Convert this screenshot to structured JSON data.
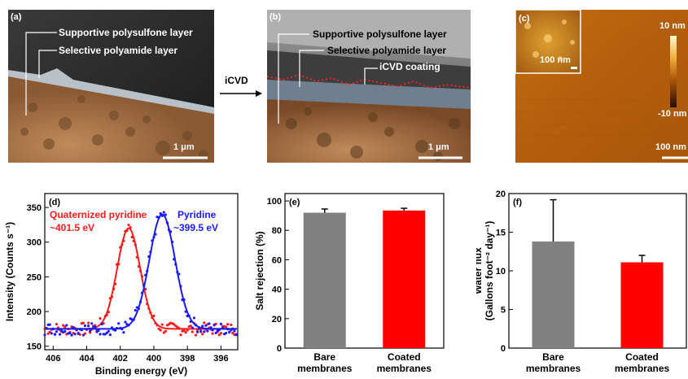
{
  "panels": {
    "a": {
      "label": "(a)",
      "layer1": "Supportive polysulfone layer",
      "layer2": "Selective polyamide layer",
      "scalebar": "1 μm"
    },
    "arrow_label": "iCVD",
    "b": {
      "label": "(b)",
      "layer1": "Supportive polysulfone layer",
      "layer2": "Selective polyamide layer",
      "layer3": "iCVD coating",
      "scalebar": "1 μm"
    },
    "c": {
      "label": "(c)",
      "inset_scalebar": "100 nm",
      "colorbar_max": "10 nm",
      "colorbar_min": "-10 nm",
      "scalebar": "100 nm"
    }
  },
  "chart_data": [
    {
      "id": "d",
      "label": "(d)",
      "type": "scatter",
      "xlabel": "Binding energy (eV)",
      "ylabel": "Intensity (Counts s⁻¹)",
      "xlim": [
        406.5,
        395
      ],
      "ylim": [
        145,
        370
      ],
      "xticks": [
        406,
        404,
        402,
        400,
        398,
        396
      ],
      "yticks": [
        150,
        200,
        250,
        300,
        350
      ],
      "annotations": [
        {
          "text": "Quaternized pyridine",
          "color": "#ff1a1a"
        },
        {
          "text": "~401.5 eV",
          "color": "#ff1a1a"
        },
        {
          "text": "Pyridine",
          "color": "#1a1aff"
        },
        {
          "text": "~399.5 eV",
          "color": "#1a1aff"
        }
      ],
      "series": [
        {
          "color": "#ff1a1a",
          "peak_center": 401.5,
          "peak_height": 320,
          "baseline": 175,
          "fwhm": 1.6
        },
        {
          "color": "#1a1aff",
          "peak_center": 399.5,
          "peak_height": 340,
          "baseline": 175,
          "fwhm": 1.8
        }
      ]
    },
    {
      "id": "e",
      "label": "(e)",
      "type": "bar",
      "categories": [
        [
          "Bare",
          "membranes"
        ],
        [
          "Coated",
          "membranes"
        ]
      ],
      "values": [
        92,
        93.5
      ],
      "errors": [
        2.5,
        1.5
      ],
      "colors": [
        "#808080",
        "#ff0000"
      ],
      "ylabel": "Salt rejection (%)",
      "ylim": [
        0,
        105
      ],
      "yticks": [
        0,
        20,
        40,
        60,
        80,
        100
      ]
    },
    {
      "id": "f",
      "label": "(f)",
      "type": "bar",
      "categories": [
        [
          "Bare",
          "membranes"
        ],
        [
          "Coated",
          "membranes"
        ]
      ],
      "values": [
        13.8,
        11.1
      ],
      "errors": [
        5.4,
        0.9
      ],
      "colors": [
        "#808080",
        "#ff0000"
      ],
      "ylabel_line1": "Water flux",
      "ylabel_line2": "(Gallons foot⁻² day⁻¹)",
      "ylim": [
        0,
        20
      ],
      "yticks": [
        0,
        5,
        10,
        15,
        20
      ]
    }
  ]
}
